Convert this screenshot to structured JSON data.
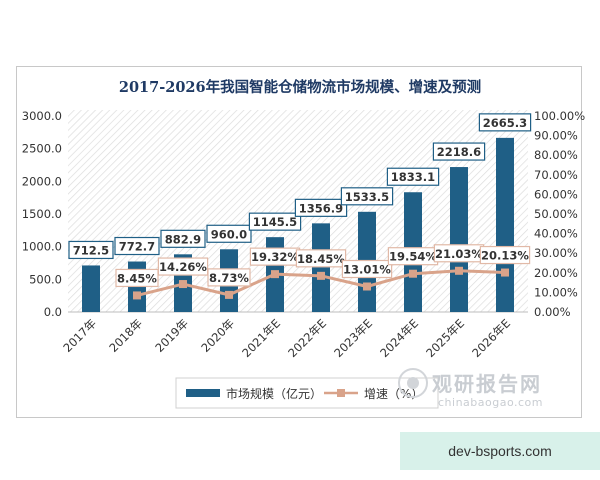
{
  "chart_data": {
    "type": "bar",
    "title": "2017-2026年我国智能仓储物流市场规模、增速及预测",
    "categories": [
      "2017年",
      "2018年",
      "2019年",
      "2020年",
      "2021年E",
      "2022年E",
      "2023年E",
      "2024年E",
      "2025年E",
      "2026年E"
    ],
    "series": [
      {
        "name": "市场规模（亿元）",
        "type": "bar",
        "axis": "left",
        "values": [
          712.5,
          772.7,
          882.9,
          960.0,
          1145.5,
          1356.9,
          1533.5,
          1833.1,
          2218.6,
          2665.3
        ],
        "labels": [
          "712.5",
          "772.7",
          "882.9",
          "960.0",
          "1145.5",
          "1356.9",
          "1533.5",
          "1833.1",
          "2218.6",
          "2665.3"
        ],
        "color": "#1f5f86"
      },
      {
        "name": "增速（%）",
        "type": "line",
        "axis": "right",
        "values": [
          null,
          8.45,
          14.26,
          8.73,
          19.32,
          18.45,
          13.01,
          19.54,
          21.03,
          20.13
        ],
        "labels": [
          "",
          "8.45%",
          "14.26%",
          "8.73%",
          "19.32%",
          "18.45%",
          "13.01%",
          "19.54%",
          "21.03%",
          "20.13%"
        ],
        "color": "#d9a38a"
      }
    ],
    "ylim_left": [
      0,
      3000
    ],
    "yticks_left": [
      "0.0",
      "500.0",
      "1000.0",
      "1500.0",
      "2000.0",
      "2500.0",
      "3000.0"
    ],
    "ylim_right": [
      0,
      100
    ],
    "yticks_right": [
      "0.00%",
      "10.00%",
      "20.00%",
      "30.00%",
      "40.00%",
      "50.00%",
      "60.00%",
      "70.00%",
      "80.00%",
      "90.00%",
      "100.00%"
    ],
    "legend_position": "bottom",
    "grid": false
  },
  "watermark": {
    "main": "观研报告网",
    "sub": "chinabaogao.com"
  },
  "footer": {
    "text": "dev-bsports.com"
  }
}
